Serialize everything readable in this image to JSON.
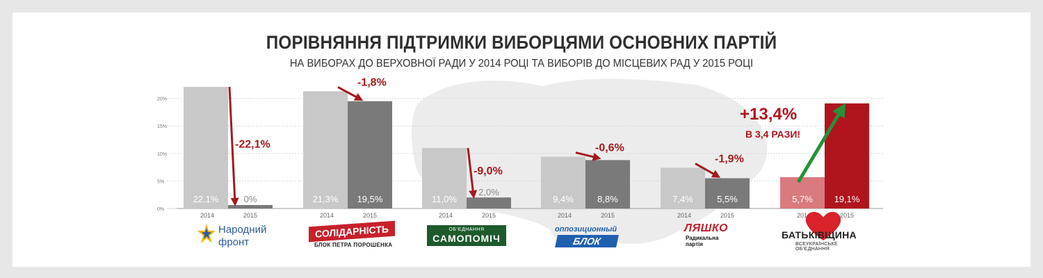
{
  "title": "ПОРІВНЯННЯ ПІДТРИМКИ  ВИБОРЦЯМИ ОСНОВНИХ  ПАРТІЙ",
  "subtitle": "НА ВИБОРАХ  ДО ВЕРХОВНОЇ РАДИ У 2014 РОЦІ ТА ВИБОРІВ ДО МІСЦЕВИХ РАД У 2015 РОЦІ",
  "logos": {
    "narodnyi_front": [
      "Народний",
      "фронт"
    ],
    "solidarnist": {
      "main": "СОЛІДАРНІСТЬ",
      "sub": "БЛОК ПЕТРА ПОРОШЕНКА"
    },
    "samopomich": {
      "top": "ОБ'ЄДНАННЯ",
      "main": "САМОПОМІЧ"
    },
    "opposition": {
      "top": "оппозиционный",
      "main": "БЛОК"
    },
    "lyashko": {
      "main": "ЛЯШКО",
      "sub": "Радикальна партія"
    },
    "batkivshchyna": {
      "main": "БАТЬКІВЩИНА",
      "sub": "ВСЕУКРАЇНСЬКЕ ОБ'ЄДНАННЯ"
    }
  },
  "colors": {
    "bar2014": "#c8c8c8",
    "bar2015": "#7a7a7a",
    "bat2014": "#d97a7e",
    "bat2015": "#b0141d",
    "decrease": "#a31a1f",
    "increase": "#27913a"
  },
  "chart_data": {
    "type": "bar",
    "x": [
      "2014",
      "2015"
    ],
    "ylim": [
      0,
      22.1
    ],
    "yticks": [
      "0%",
      "5%",
      "10%",
      "15%",
      "20%"
    ],
    "grid": true,
    "groups": [
      {
        "v2014": 22.1,
        "v2015": 0.0,
        "label2014": "22,1%",
        "label2015": "0%",
        "change": "-22,1%",
        "direction": "down",
        "x2014": "2014",
        "x2015": "2015"
      },
      {
        "v2014": 21.3,
        "v2015": 19.5,
        "label2014": "21,3%",
        "label2015": "19,5%",
        "change": "-1,8%",
        "direction": "down",
        "x2014": "2014",
        "x2015": "2015"
      },
      {
        "v2014": 11.0,
        "v2015": 2.0,
        "label2014": "11,0%",
        "label2015": "2,0%",
        "change": "-9,0%",
        "direction": "down",
        "x2014": "2014",
        "x2015": "2015"
      },
      {
        "v2014": 9.4,
        "v2015": 8.8,
        "label2014": "9,4%",
        "label2015": "8,8%",
        "change": "-0,6%",
        "direction": "down",
        "x2014": "2014",
        "x2015": "2015"
      },
      {
        "v2014": 7.4,
        "v2015": 5.5,
        "label2014": "7,4%",
        "label2015": "5,5%",
        "change": "-1,9%",
        "direction": "down",
        "x2014": "2014",
        "x2015": "2015"
      },
      {
        "v2014": 5.7,
        "v2015": 19.1,
        "label2014": "5,7%",
        "label2015": "19,1%",
        "change": "+13,4%",
        "change_note": "В 3,4 РАЗИ!",
        "direction": "up",
        "x2014": "2014",
        "x2015": "2015"
      }
    ]
  }
}
